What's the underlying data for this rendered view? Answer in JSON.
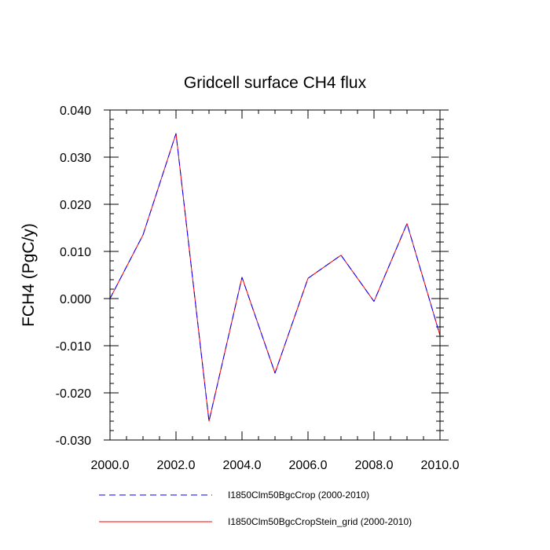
{
  "chart_data": {
    "type": "line",
    "title": "Gridcell surface CH4 flux",
    "xlabel": "",
    "ylabel": "FCH4  (PgC/y)",
    "xlim": [
      2000,
      2010
    ],
    "ylim": [
      -0.03,
      0.04
    ],
    "x_ticks": [
      "2000.0",
      "2002.0",
      "2004.0",
      "2006.0",
      "2008.0",
      "2010.0"
    ],
    "y_ticks": [
      "0.040",
      "0.030",
      "0.020",
      "0.010",
      "0.000",
      "-0.010",
      "-0.020",
      "-0.030"
    ],
    "grid": false,
    "legend_position": "bottom",
    "x": [
      2000,
      2001,
      2002,
      2003,
      2004,
      2005,
      2006,
      2007,
      2008,
      2009,
      2010
    ],
    "series": [
      {
        "name": "I1850Clm50BgcCrop (2000-2010)",
        "color": "#0000ff",
        "style": "dashed",
        "values": [
          0.0,
          0.0135,
          0.035,
          -0.026,
          0.0045,
          -0.0158,
          0.0043,
          0.0092,
          -0.0006,
          0.0159,
          -0.0078
        ]
      },
      {
        "name": "I1850Clm50BgcCropStein_grid (2000-2010)",
        "color": "#ff0000",
        "style": "solid",
        "values": [
          0.0,
          0.0135,
          0.035,
          -0.026,
          0.0045,
          -0.0158,
          0.0043,
          0.0092,
          -0.0006,
          0.0159,
          -0.0078
        ]
      }
    ]
  }
}
